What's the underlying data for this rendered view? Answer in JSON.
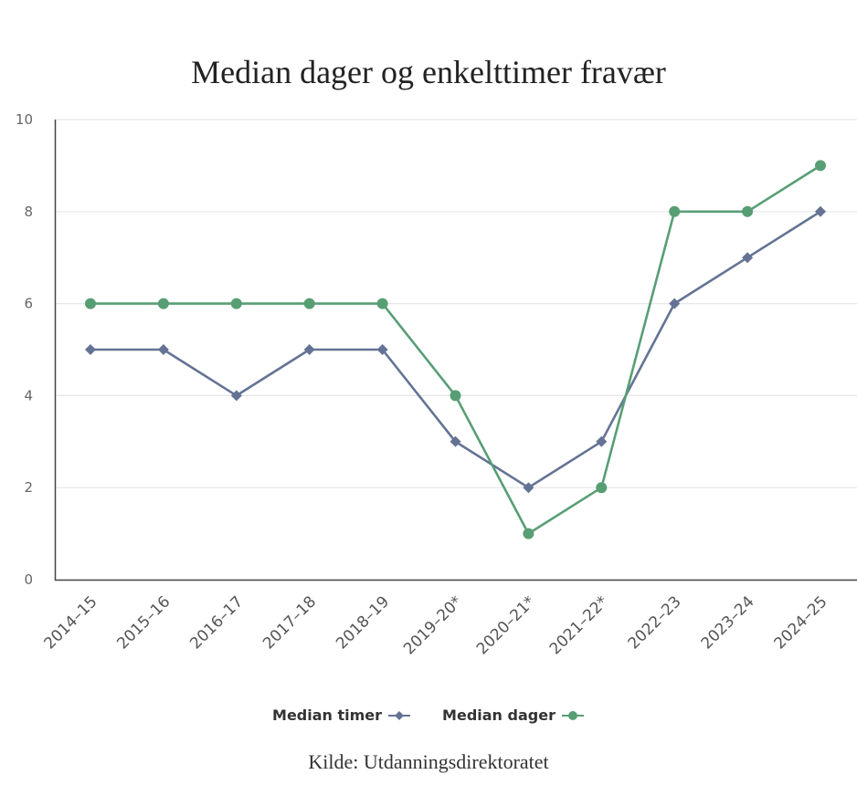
{
  "chart_data": {
    "type": "line",
    "title": "Median dager og enkelttimer fravær",
    "xlabel": "",
    "ylabel": "",
    "ylim": [
      0,
      10
    ],
    "yticks": [
      0,
      2,
      4,
      6,
      8,
      10
    ],
    "grid": true,
    "legend_position": "bottom",
    "categories": [
      "2014–15",
      "2015–16",
      "2016–17",
      "2017–18",
      "2018–19",
      "2019–20*",
      "2020–21*",
      "2021–22*",
      "2022–23",
      "2023–24",
      "2024–25"
    ],
    "series": [
      {
        "name": "Median timer",
        "color": "#647394",
        "marker": "diamond",
        "values": [
          5,
          5,
          4,
          5,
          5,
          3,
          2,
          3,
          6,
          7,
          8
        ]
      },
      {
        "name": "Median dager",
        "color": "#589e74",
        "marker": "circle",
        "values": [
          6,
          6,
          6,
          6,
          6,
          4,
          1,
          2,
          8,
          8,
          9
        ]
      }
    ],
    "source": "Kilde: Utdanningsdirektoratet"
  },
  "legend": {
    "items": [
      {
        "label": "Median timer"
      },
      {
        "label": "Median dager"
      }
    ]
  }
}
